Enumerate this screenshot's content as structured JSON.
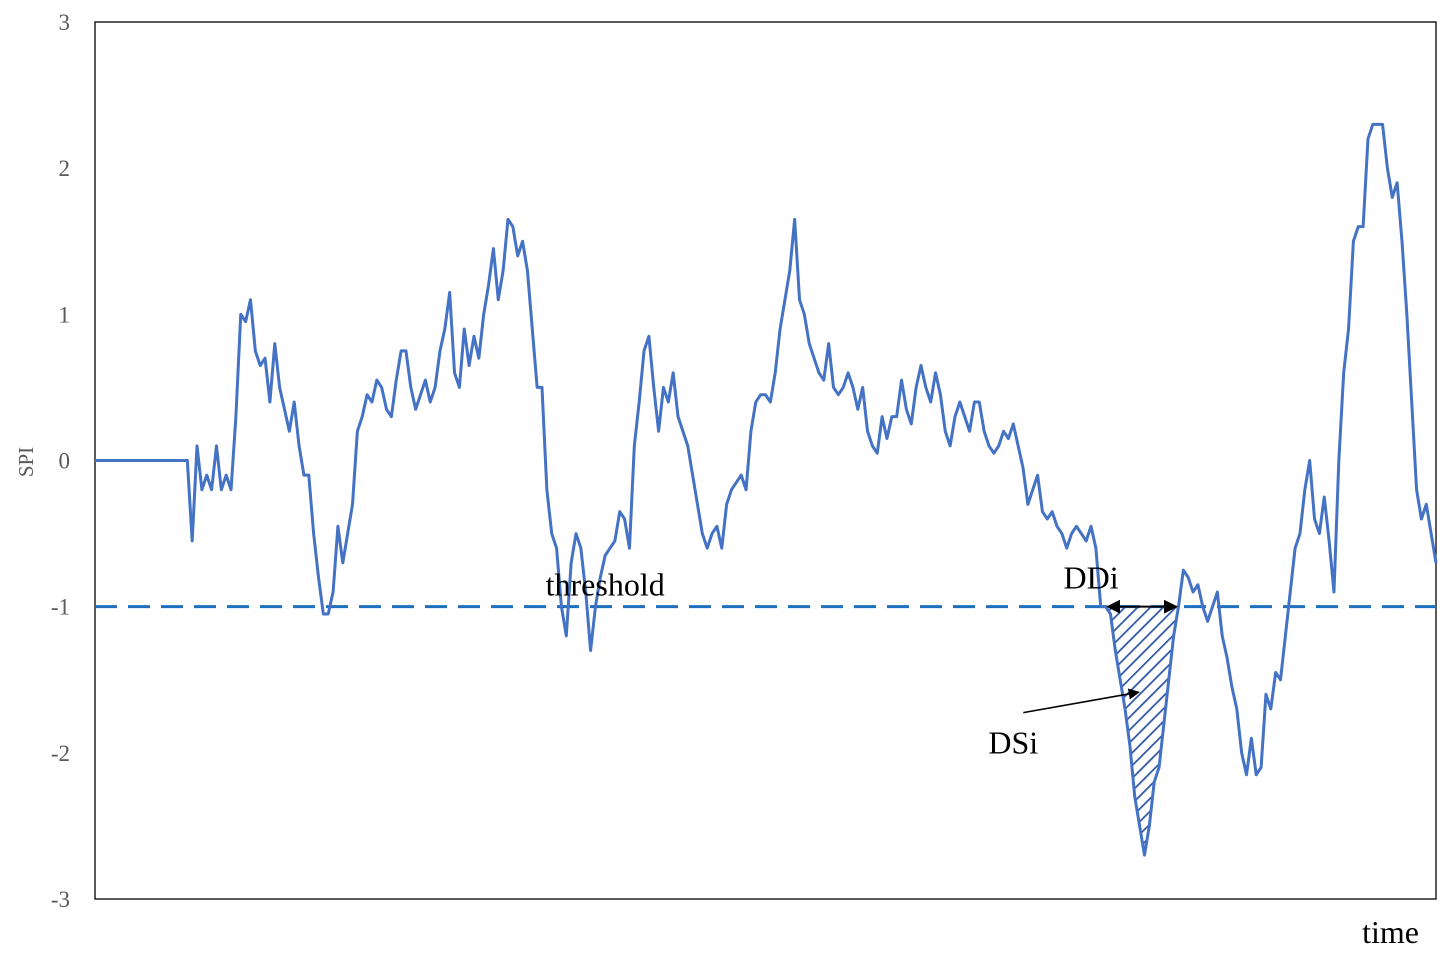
{
  "chart_data": {
    "type": "line",
    "xlabel": "time",
    "ylabel": "SPI",
    "ylim": [
      -3,
      3
    ],
    "yticks": [
      3,
      2,
      1,
      0,
      -1,
      -2,
      -3
    ],
    "ytick_labels": [
      "3",
      "2",
      "1",
      "0",
      "-1",
      "-2",
      "-3"
    ],
    "grid": false,
    "series": [
      {
        "values": [
          0,
          0,
          0,
          0,
          0,
          0,
          0,
          0,
          0,
          0,
          0,
          0,
          0,
          0,
          0,
          0,
          0,
          0,
          0,
          0,
          -0.55,
          0.1,
          -0.2,
          -0.1,
          -0.2,
          0.1,
          -0.2,
          -0.1,
          -0.2,
          0.3,
          1.0,
          0.95,
          1.1,
          0.75,
          0.65,
          0.7,
          0.4,
          0.8,
          0.5,
          0.35,
          0.2,
          0.4,
          0.1,
          -0.1,
          -0.1,
          -0.5,
          -0.8,
          -1.05,
          -1.05,
          -0.9,
          -0.45,
          -0.7,
          -0.5,
          -0.3,
          0.2,
          0.3,
          0.45,
          0.4,
          0.55,
          0.5,
          0.35,
          0.3,
          0.55,
          0.75,
          0.75,
          0.5,
          0.35,
          0.45,
          0.55,
          0.4,
          0.5,
          0.75,
          0.9,
          1.15,
          0.6,
          0.5,
          0.9,
          0.65,
          0.85,
          0.7,
          1.0,
          1.2,
          1.45,
          1.1,
          1.3,
          1.65,
          1.6,
          1.4,
          1.5,
          1.3,
          0.9,
          0.5,
          0.5,
          -0.2,
          -0.5,
          -0.6,
          -1.0,
          -1.2,
          -0.7,
          -0.5,
          -0.6,
          -0.9,
          -1.3,
          -1.0,
          -0.8,
          -0.65,
          -0.6,
          -0.55,
          -0.35,
          -0.4,
          -0.6,
          0.1,
          0.4,
          0.75,
          0.85,
          0.5,
          0.2,
          0.5,
          0.4,
          0.6,
          0.3,
          0.2,
          0.1,
          -0.1,
          -0.3,
          -0.5,
          -0.6,
          -0.5,
          -0.45,
          -0.6,
          -0.3,
          -0.2,
          -0.15,
          -0.1,
          -0.2,
          0.2,
          0.4,
          0.45,
          0.45,
          0.4,
          0.6,
          0.9,
          1.1,
          1.3,
          1.65,
          1.1,
          1.0,
          0.8,
          0.7,
          0.6,
          0.55,
          0.8,
          0.5,
          0.45,
          0.5,
          0.6,
          0.5,
          0.35,
          0.5,
          0.2,
          0.1,
          0.05,
          0.3,
          0.15,
          0.3,
          0.3,
          0.55,
          0.35,
          0.25,
          0.5,
          0.65,
          0.5,
          0.4,
          0.6,
          0.45,
          0.2,
          0.1,
          0.3,
          0.4,
          0.3,
          0.2,
          0.4,
          0.4,
          0.2,
          0.1,
          0.05,
          0.1,
          0.2,
          0.15,
          0.25,
          0.1,
          -0.05,
          -0.3,
          -0.2,
          -0.1,
          -0.35,
          -0.4,
          -0.35,
          -0.45,
          -0.5,
          -0.6,
          -0.5,
          -0.45,
          -0.5,
          -0.55,
          -0.45,
          -0.6,
          -1.0,
          -1.0,
          -1.05,
          -1.3,
          -1.5,
          -1.7,
          -1.95,
          -2.3,
          -2.5,
          -2.7,
          -2.5,
          -2.2,
          -2.1,
          -1.8,
          -1.5,
          -1.2,
          -1.0,
          -0.75,
          -0.8,
          -0.9,
          -0.85,
          -1.0,
          -1.1,
          -1.0,
          -0.9,
          -1.2,
          -1.35,
          -1.55,
          -1.7,
          -2.0,
          -2.15,
          -1.9,
          -2.15,
          -2.1,
          -1.6,
          -1.7,
          -1.45,
          -1.5,
          -1.2,
          -0.9,
          -0.6,
          -0.5,
          -0.2,
          0.0,
          -0.4,
          -0.5,
          -0.25,
          -0.55,
          -0.9,
          0.0,
          0.6,
          0.9,
          1.5,
          1.6,
          1.6,
          2.2,
          2.3,
          2.3,
          2.3,
          2.0,
          1.8,
          1.9,
          1.5,
          1.0,
          0.4,
          -0.2,
          -0.4,
          -0.3,
          -0.5,
          -0.7
        ]
      }
    ],
    "threshold": {
      "value": -1,
      "color": "#1f6fbf"
    },
    "annotations": [
      {
        "text": "threshold",
        "x_index": 105,
        "y": -0.85
      },
      {
        "text": "DDi",
        "x_index": 205,
        "y": -0.8
      },
      {
        "text": "DSi",
        "x_index": 189,
        "y": -1.93
      }
    ],
    "colors": {
      "line": "#4472c4",
      "threshold": "#1f6fbf",
      "frame": "#000000",
      "hatch": "#2f55a4"
    }
  }
}
